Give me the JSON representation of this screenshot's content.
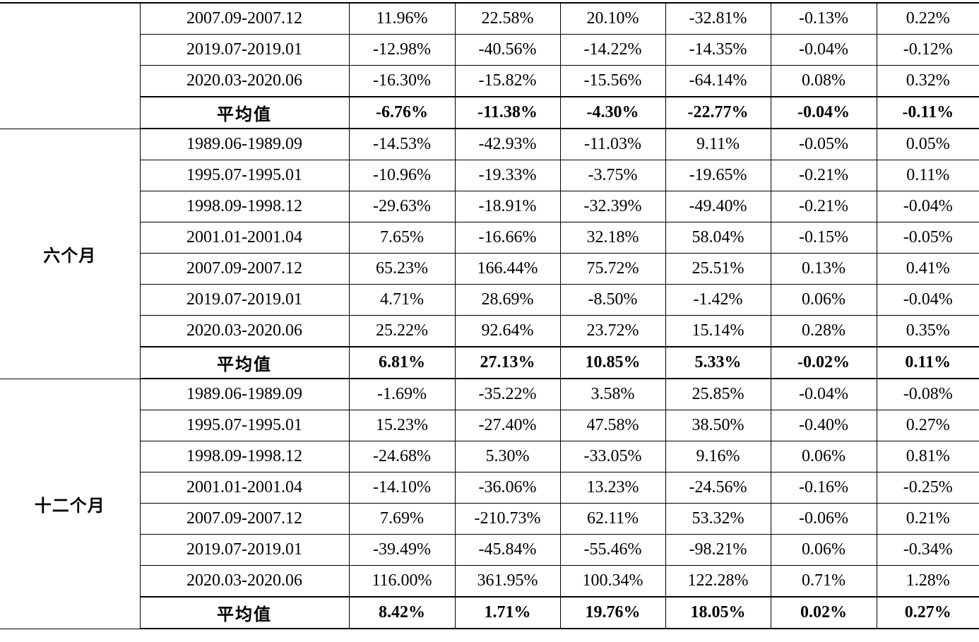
{
  "table": {
    "groups": [
      {
        "label": "",
        "rows": [
          {
            "period": "2007.09-2007.12",
            "values": [
              "11.96%",
              "22.58%",
              "20.10%",
              "-32.81%",
              "-0.13%",
              "0.22%"
            ]
          },
          {
            "period": "2019.07-2019.01",
            "values": [
              "-12.98%",
              "-40.56%",
              "-14.22%",
              "-14.35%",
              "-0.04%",
              "-0.12%"
            ]
          },
          {
            "period": "2020.03-2020.06",
            "values": [
              "-16.30%",
              "-15.82%",
              "-15.56%",
              "-64.14%",
              "0.08%",
              "0.32%"
            ]
          }
        ],
        "average": {
          "label": "平均值",
          "values": [
            "-6.76%",
            "-11.38%",
            "-4.30%",
            "-22.77%",
            "-0.04%",
            "-0.11%"
          ]
        }
      },
      {
        "label": "六个月",
        "rows": [
          {
            "period": "1989.06-1989.09",
            "values": [
              "-14.53%",
              "-42.93%",
              "-11.03%",
              "9.11%",
              "-0.05%",
              "0.05%"
            ]
          },
          {
            "period": "1995.07-1995.01",
            "values": [
              "-10.96%",
              "-19.33%",
              "-3.75%",
              "-19.65%",
              "-0.21%",
              "0.11%"
            ]
          },
          {
            "period": "1998.09-1998.12",
            "values": [
              "-29.63%",
              "-18.91%",
              "-32.39%",
              "-49.40%",
              "-0.21%",
              "-0.04%"
            ]
          },
          {
            "period": "2001.01-2001.04",
            "values": [
              "7.65%",
              "-16.66%",
              "32.18%",
              "58.04%",
              "-0.15%",
              "-0.05%"
            ]
          },
          {
            "period": "2007.09-2007.12",
            "values": [
              "65.23%",
              "166.44%",
              "75.72%",
              "25.51%",
              "0.13%",
              "0.41%"
            ]
          },
          {
            "period": "2019.07-2019.01",
            "values": [
              "4.71%",
              "28.69%",
              "-8.50%",
              "-1.42%",
              "0.06%",
              "-0.04%"
            ]
          },
          {
            "period": "2020.03-2020.06",
            "values": [
              "25.22%",
              "92.64%",
              "23.72%",
              "15.14%",
              "0.28%",
              "0.35%"
            ]
          }
        ],
        "average": {
          "label": "平均值",
          "values": [
            "6.81%",
            "27.13%",
            "10.85%",
            "5.33%",
            "-0.02%",
            "0.11%"
          ]
        }
      },
      {
        "label": "十二个月",
        "rows": [
          {
            "period": "1989.06-1989.09",
            "values": [
              "-1.69%",
              "-35.22%",
              "3.58%",
              "25.85%",
              "-0.04%",
              "-0.08%"
            ]
          },
          {
            "period": "1995.07-1995.01",
            "values": [
              "15.23%",
              "-27.40%",
              "47.58%",
              "38.50%",
              "-0.40%",
              "0.27%"
            ]
          },
          {
            "period": "1998.09-1998.12",
            "values": [
              "-24.68%",
              "5.30%",
              "-33.05%",
              "9.16%",
              "0.06%",
              "0.81%"
            ]
          },
          {
            "period": "2001.01-2001.04",
            "values": [
              "-14.10%",
              "-36.06%",
              "13.23%",
              "-24.56%",
              "-0.16%",
              "-0.25%"
            ]
          },
          {
            "period": "2007.09-2007.12",
            "values": [
              "7.69%",
              "-210.73%",
              "62.11%",
              "53.32%",
              "-0.06%",
              "0.21%"
            ]
          },
          {
            "period": "2019.07-2019.01",
            "values": [
              "-39.49%",
              "-45.84%",
              "-55.46%",
              "-98.21%",
              "0.06%",
              "-0.34%"
            ]
          },
          {
            "period": "2020.03-2020.06",
            "values": [
              "116.00%",
              "361.95%",
              "100.34%",
              "122.28%",
              "0.71%",
              "1.28%"
            ]
          }
        ],
        "average": {
          "label": "平均值",
          "values": [
            "8.42%",
            "1.71%",
            "19.76%",
            "18.05%",
            "0.02%",
            "0.27%"
          ]
        }
      }
    ]
  }
}
